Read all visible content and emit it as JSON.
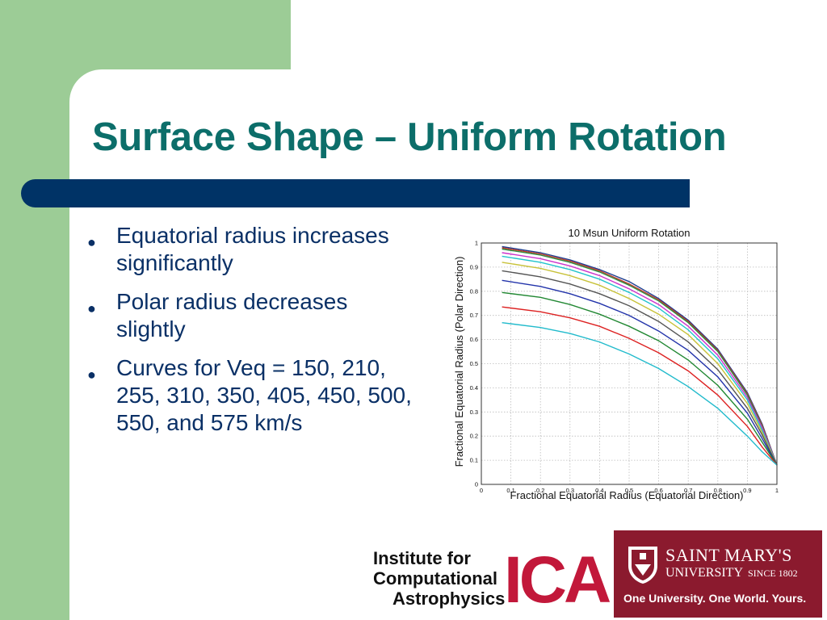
{
  "slide": {
    "title": "Surface Shape – Uniform Rotation",
    "bullets": [
      "Equatorial radius increases significantly",
      "Polar radius decreases slightly",
      "Curves for Veq = 150, 210, 255, 310, 350, 405, 450, 500, 550, and 575 km/s"
    ]
  },
  "colors": {
    "title": "#0c6e6a",
    "title_bar": "#003366",
    "side_band": "#9ccc96",
    "bullet_text": "#0a3066"
  },
  "logos": {
    "ica": {
      "lines": [
        "Institute for",
        "Computational",
        "Astrophysics"
      ],
      "mark": "ICA"
    },
    "smu": {
      "name": "SAINT MARY'S",
      "university": "UNIVERSITY",
      "since": "SINCE 1802",
      "tagline": "One University. One World. Yours."
    }
  },
  "chart_data": {
    "type": "line",
    "title": "10 Msun  Uniform Rotation",
    "xlabel": "Fractional Equatorial Radius (Equatorial Direction)",
    "ylabel": "Fractional Equatorial Radius (Polar Direction)",
    "xlim": [
      0,
      1
    ],
    "ylim": [
      0,
      1
    ],
    "xticks": [
      "0",
      "0.1",
      "0.2",
      "0.3",
      "0.4",
      "0.5",
      "0.6",
      "0.7",
      "0.8",
      "0.9",
      "1"
    ],
    "yticks": [
      "0",
      "0.1",
      "0.2",
      "0.3",
      "0.4",
      "0.5",
      "0.6",
      "0.7",
      "0.8",
      "0.9",
      "1"
    ],
    "grid": true,
    "series": [
      {
        "color": "#1f3f8f",
        "x": [
          0.07,
          0.2,
          0.3,
          0.4,
          0.5,
          0.6,
          0.7,
          0.8,
          0.9,
          0.95,
          1.0
        ],
        "y": [
          0.985,
          0.96,
          0.93,
          0.89,
          0.84,
          0.77,
          0.68,
          0.56,
          0.38,
          0.25,
          0.08
        ]
      },
      {
        "color": "#c0392b",
        "x": [
          0.07,
          0.2,
          0.3,
          0.4,
          0.5,
          0.6,
          0.7,
          0.8,
          0.9,
          0.95,
          1.0
        ],
        "y": [
          0.98,
          0.955,
          0.925,
          0.885,
          0.83,
          0.765,
          0.675,
          0.555,
          0.375,
          0.245,
          0.08
        ]
      },
      {
        "color": "#2e8b3e",
        "x": [
          0.07,
          0.2,
          0.3,
          0.4,
          0.5,
          0.6,
          0.7,
          0.8,
          0.9,
          0.95,
          1.0
        ],
        "y": [
          0.975,
          0.95,
          0.92,
          0.88,
          0.825,
          0.76,
          0.67,
          0.55,
          0.37,
          0.24,
          0.08
        ]
      },
      {
        "color": "#cc33cc",
        "x": [
          0.07,
          0.2,
          0.3,
          0.4,
          0.5,
          0.6,
          0.7,
          0.8,
          0.9,
          0.95,
          1.0
        ],
        "y": [
          0.96,
          0.935,
          0.905,
          0.865,
          0.81,
          0.745,
          0.655,
          0.535,
          0.36,
          0.235,
          0.08
        ]
      },
      {
        "color": "#22c4cc",
        "x": [
          0.07,
          0.2,
          0.3,
          0.4,
          0.5,
          0.6,
          0.7,
          0.8,
          0.9,
          0.95,
          1.0
        ],
        "y": [
          0.945,
          0.92,
          0.89,
          0.85,
          0.795,
          0.73,
          0.64,
          0.52,
          0.35,
          0.225,
          0.08
        ]
      },
      {
        "color": "#c8c23a",
        "x": [
          0.07,
          0.2,
          0.3,
          0.4,
          0.5,
          0.6,
          0.7,
          0.8,
          0.9,
          0.95,
          1.0
        ],
        "y": [
          0.92,
          0.895,
          0.865,
          0.825,
          0.77,
          0.705,
          0.62,
          0.5,
          0.335,
          0.215,
          0.08
        ]
      },
      {
        "color": "#555555",
        "x": [
          0.07,
          0.2,
          0.3,
          0.4,
          0.5,
          0.6,
          0.7,
          0.8,
          0.9,
          0.95,
          1.0
        ],
        "y": [
          0.885,
          0.86,
          0.83,
          0.79,
          0.74,
          0.675,
          0.59,
          0.475,
          0.315,
          0.205,
          0.08
        ]
      },
      {
        "color": "#2233aa",
        "x": [
          0.07,
          0.2,
          0.3,
          0.4,
          0.5,
          0.6,
          0.7,
          0.8,
          0.9,
          0.95,
          1.0
        ],
        "y": [
          0.845,
          0.82,
          0.79,
          0.75,
          0.7,
          0.635,
          0.555,
          0.445,
          0.295,
          0.19,
          0.08
        ]
      },
      {
        "color": "#228833",
        "x": [
          0.07,
          0.2,
          0.3,
          0.4,
          0.5,
          0.6,
          0.7,
          0.8,
          0.9,
          0.95,
          1.0
        ],
        "y": [
          0.795,
          0.775,
          0.745,
          0.705,
          0.655,
          0.595,
          0.515,
          0.41,
          0.27,
          0.175,
          0.08
        ]
      },
      {
        "color": "#dd2222",
        "x": [
          0.07,
          0.2,
          0.3,
          0.4,
          0.5,
          0.6,
          0.7,
          0.8,
          0.9,
          0.95,
          1.0
        ],
        "y": [
          0.735,
          0.715,
          0.69,
          0.655,
          0.605,
          0.545,
          0.47,
          0.37,
          0.24,
          0.155,
          0.08
        ]
      },
      {
        "color": "#22bbcc",
        "x": [
          0.07,
          0.2,
          0.3,
          0.4,
          0.5,
          0.6,
          0.7,
          0.8,
          0.9,
          0.95,
          1.0
        ],
        "y": [
          0.67,
          0.65,
          0.625,
          0.59,
          0.54,
          0.48,
          0.405,
          0.315,
          0.2,
          0.135,
          0.08
        ]
      }
    ]
  }
}
